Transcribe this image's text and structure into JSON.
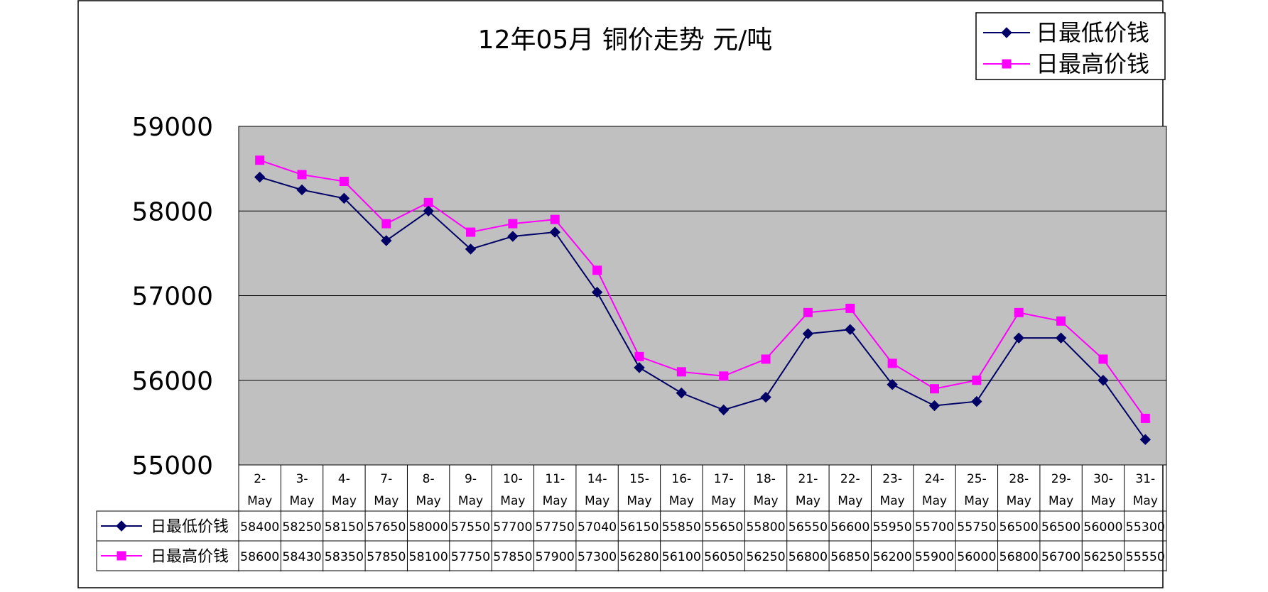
{
  "chart_data": {
    "type": "line",
    "title": "12年05月  铜价走势    元/吨",
    "categories": [
      "2-May",
      "3-May",
      "4-May",
      "7-May",
      "8-May",
      "9-May",
      "10-May",
      "11-May",
      "14-May",
      "15-May",
      "16-May",
      "17-May",
      "18-May",
      "21-May",
      "22-May",
      "23-May",
      "24-May",
      "25-May",
      "28-May",
      "29-May",
      "30-May",
      "31-May"
    ],
    "category_labels": [
      [
        "2-",
        "May"
      ],
      [
        "3-",
        "May"
      ],
      [
        "4-",
        "May"
      ],
      [
        "7-",
        "May"
      ],
      [
        "8-",
        "May"
      ],
      [
        "9-",
        "May"
      ],
      [
        "10-",
        "May"
      ],
      [
        "11-",
        "May"
      ],
      [
        "14-",
        "May"
      ],
      [
        "15-",
        "May"
      ],
      [
        "16-",
        "May"
      ],
      [
        "17-",
        "May"
      ],
      [
        "18-",
        "May"
      ],
      [
        "21-",
        "May"
      ],
      [
        "22-",
        "May"
      ],
      [
        "23-",
        "May"
      ],
      [
        "24-",
        "May"
      ],
      [
        "25-",
        "May"
      ],
      [
        "28-",
        "May"
      ],
      [
        "29-",
        "May"
      ],
      [
        "30-",
        "May"
      ],
      [
        "31-",
        "May"
      ]
    ],
    "series": [
      {
        "name": "日最低价钱",
        "color": "#000066",
        "marker": "diamond",
        "values": [
          58400,
          58250,
          58150,
          57650,
          58000,
          57550,
          57700,
          57750,
          57040,
          56150,
          55850,
          55650,
          55800,
          56550,
          56600,
          55950,
          55700,
          55750,
          56500,
          56500,
          56000,
          55300
        ]
      },
      {
        "name": "日最高价钱",
        "color": "#ff00ff",
        "marker": "square",
        "values": [
          58600,
          58430,
          58350,
          57850,
          58100,
          57750,
          57850,
          57900,
          57300,
          56280,
          56100,
          56050,
          56250,
          56800,
          56850,
          56200,
          55900,
          56000,
          56800,
          56700,
          56250,
          55550
        ]
      }
    ],
    "ylim": [
      55000,
      59000
    ],
    "yticks": [
      "55000",
      "56000",
      "57000",
      "58000",
      "59000"
    ],
    "grid": true,
    "plot_background": "#c0c0c0",
    "legend_position": "top-right",
    "data_table": true
  }
}
